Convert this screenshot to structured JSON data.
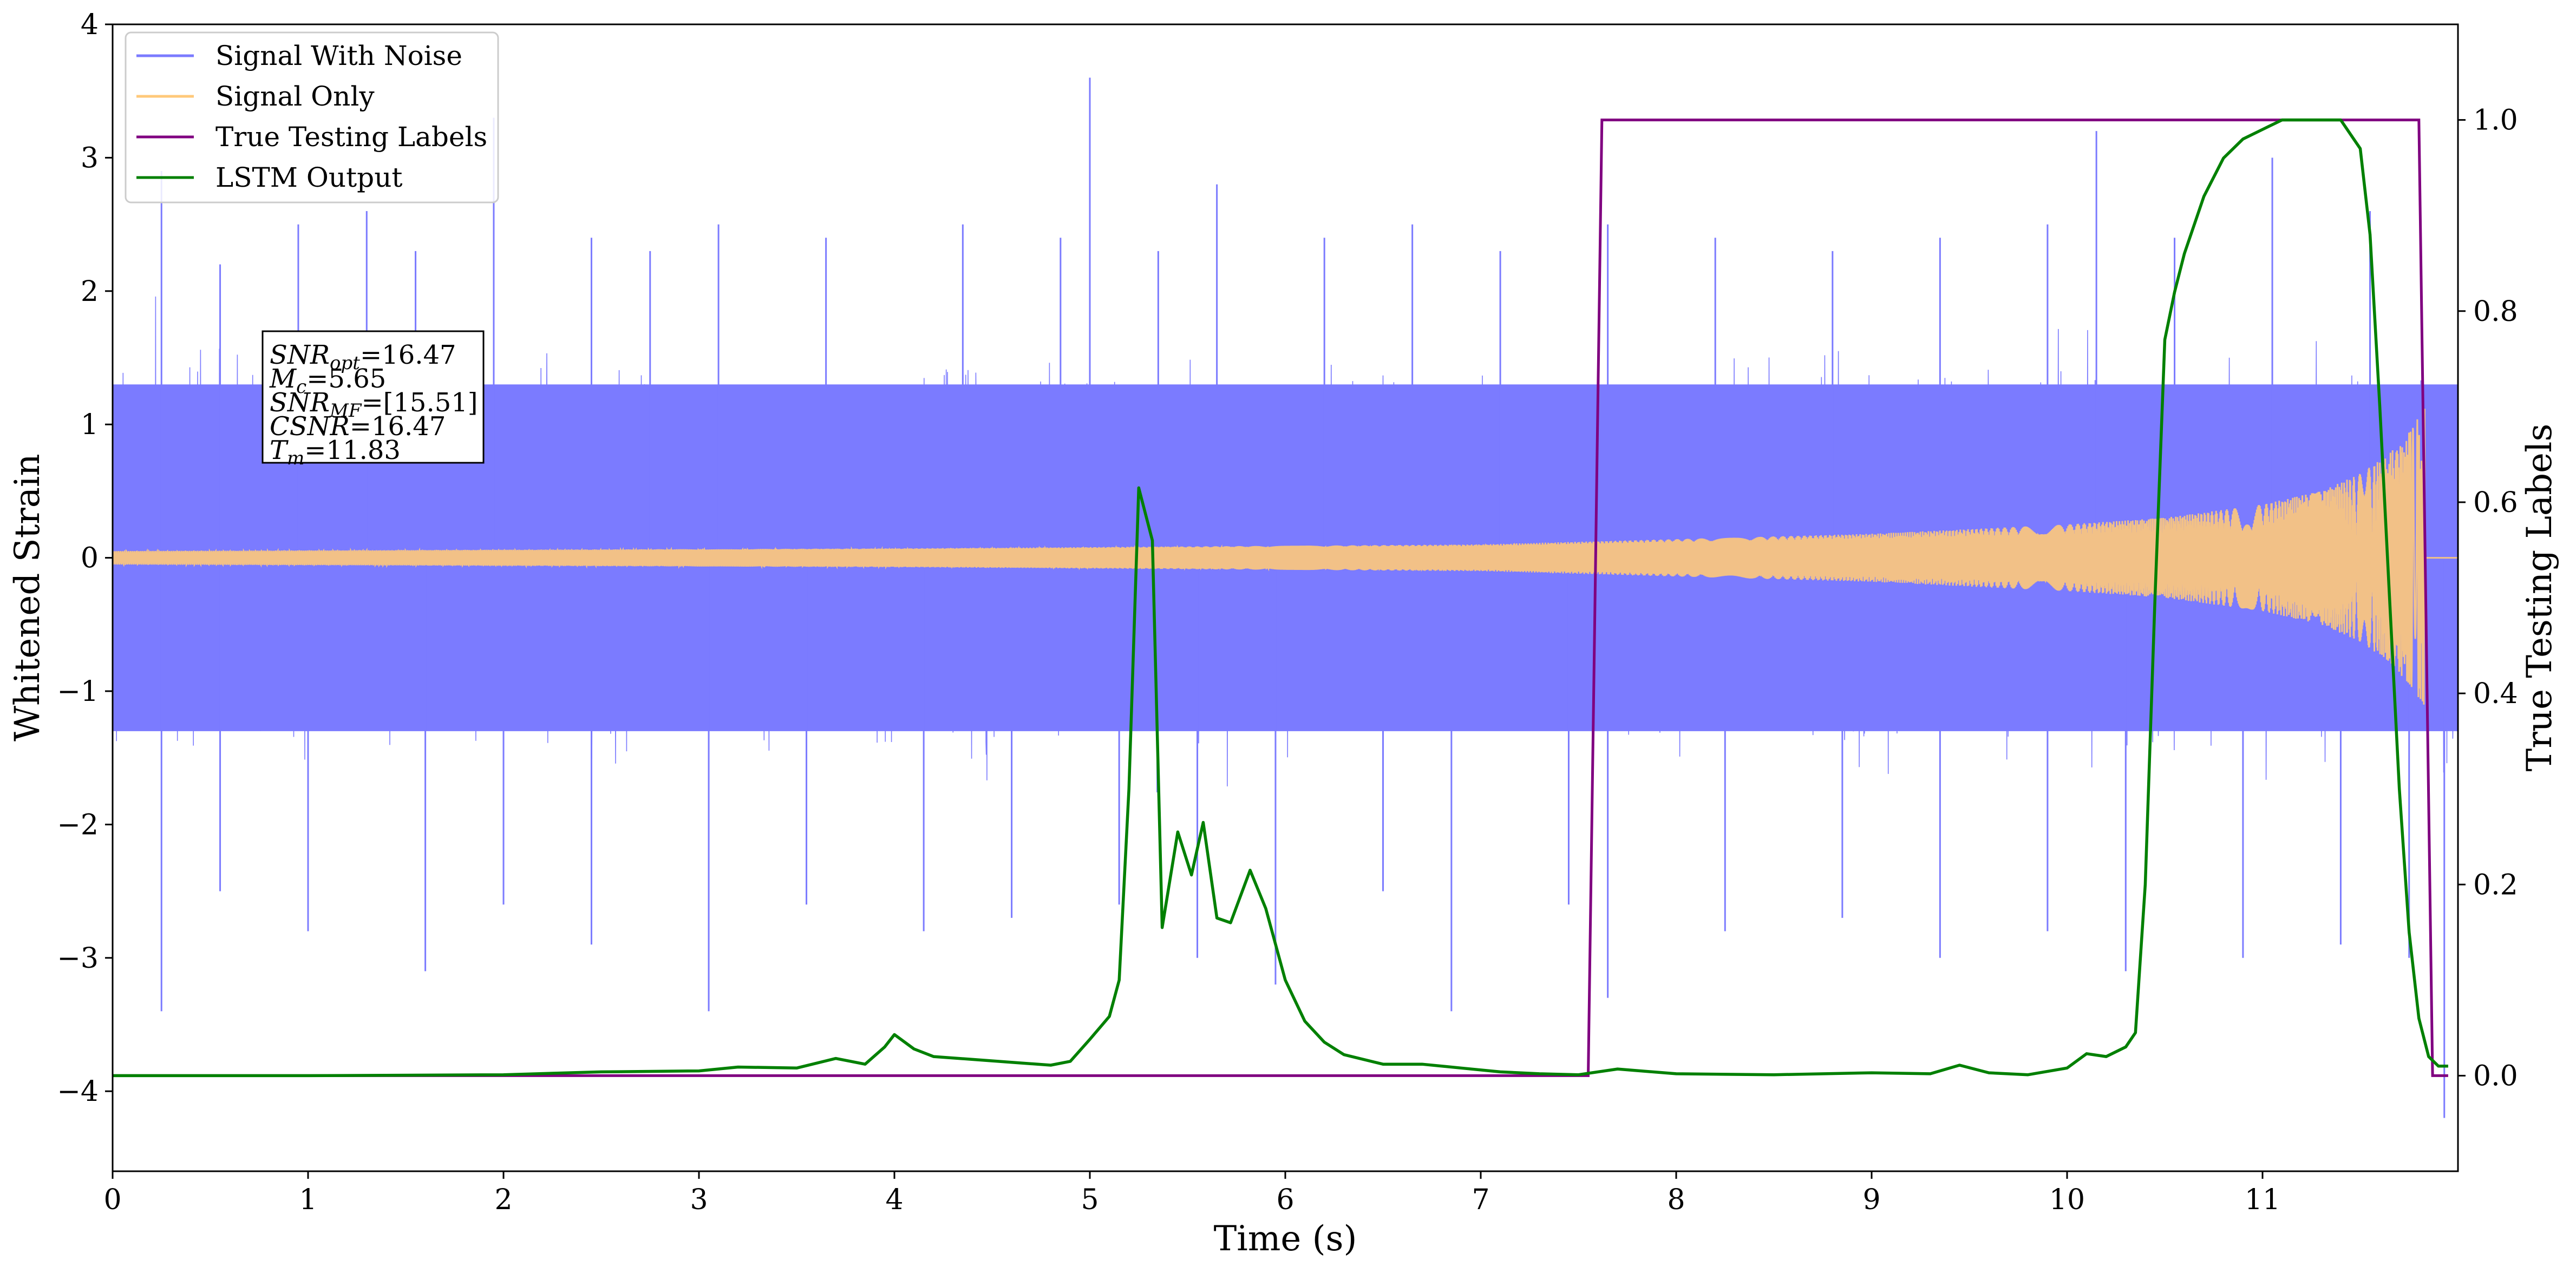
{
  "chart_data": {
    "type": "line",
    "title": "",
    "xlabel": "Time (s)",
    "ylabel_left": "Whitened Strain",
    "ylabel_right": "True Testing Labels",
    "xlim": [
      0,
      12
    ],
    "ylim_left": [
      -4.6,
      4.0
    ],
    "ylim_right": [
      -0.1,
      1.1
    ],
    "x_ticks": [
      {
        "value": 0,
        "label": "0"
      },
      {
        "value": 1,
        "label": "1"
      },
      {
        "value": 2,
        "label": "2"
      },
      {
        "value": 3,
        "label": "3"
      },
      {
        "value": 4,
        "label": "4"
      },
      {
        "value": 5,
        "label": "5"
      },
      {
        "value": 6,
        "label": "6"
      },
      {
        "value": 7,
        "label": "7"
      },
      {
        "value": 8,
        "label": "8"
      },
      {
        "value": 9,
        "label": "9"
      },
      {
        "value": 10,
        "label": "10"
      },
      {
        "value": 11,
        "label": "11"
      }
    ],
    "y_left_ticks": [
      {
        "value": 4,
        "label": "4"
      },
      {
        "value": 3,
        "label": "3"
      },
      {
        "value": 2,
        "label": "2"
      },
      {
        "value": 1,
        "label": "1"
      },
      {
        "value": 0,
        "label": "0"
      },
      {
        "value": -1,
        "label": "−1"
      },
      {
        "value": -2,
        "label": "−2"
      },
      {
        "value": -3,
        "label": "−3"
      },
      {
        "value": -4,
        "label": "−4"
      }
    ],
    "y_right_ticks": [
      {
        "value": 1.0,
        "label": "1.0"
      },
      {
        "value": 0.8,
        "label": "0.8"
      },
      {
        "value": 0.6,
        "label": "0.6"
      },
      {
        "value": 0.4,
        "label": "0.4"
      },
      {
        "value": 0.2,
        "label": "0.2"
      },
      {
        "value": 0.0,
        "label": "0.0"
      }
    ],
    "legend": {
      "placement": "top-left",
      "entries": [
        {
          "label": "Signal With Noise",
          "color": "#7b7bff"
        },
        {
          "label": "Signal Only",
          "color": "#ffc97a"
        },
        {
          "label": "True Testing Labels",
          "color": "#800080"
        },
        {
          "label": "LSTM Output",
          "color": "#008000"
        }
      ]
    },
    "annotation": {
      "placement": "upper-left",
      "lines": [
        {
          "main": "SNR",
          "sub": "opt",
          "rest": "=16.47"
        },
        {
          "main": "M",
          "sub": "c",
          "rest": "=5.65"
        },
        {
          "main": "SNR",
          "sub": "MF",
          "rest": "=[15.51]"
        },
        {
          "main": "CSNR",
          "sub": "",
          "rest": "=16.47"
        },
        {
          "main": "T",
          "sub": "m",
          "rest": "=11.83"
        }
      ]
    },
    "series": [
      {
        "name": "Signal With Noise",
        "axis": "left",
        "color": "#7b7bff",
        "style": "dense noise band",
        "band_lower_typical": -1.3,
        "band_upper_typical": 1.3,
        "spikes_up": [
          [
            0.25,
            2.9
          ],
          [
            0.55,
            2.2
          ],
          [
            0.95,
            2.5
          ],
          [
            1.3,
            2.6
          ],
          [
            1.55,
            2.3
          ],
          [
            1.95,
            3.3
          ],
          [
            2.45,
            2.4
          ],
          [
            2.75,
            2.3
          ],
          [
            3.1,
            2.5
          ],
          [
            3.65,
            2.4
          ],
          [
            4.35,
            2.5
          ],
          [
            4.85,
            2.4
          ],
          [
            5.0,
            3.6
          ],
          [
            5.35,
            2.3
          ],
          [
            5.65,
            2.8
          ],
          [
            6.2,
            2.4
          ],
          [
            6.65,
            2.5
          ],
          [
            7.1,
            2.3
          ],
          [
            7.65,
            2.5
          ],
          [
            8.2,
            2.4
          ],
          [
            8.8,
            2.3
          ],
          [
            9.35,
            2.4
          ],
          [
            9.9,
            2.5
          ],
          [
            10.15,
            3.2
          ],
          [
            10.55,
            2.4
          ],
          [
            11.05,
            3.0
          ],
          [
            11.55,
            2.6
          ]
        ],
        "spikes_down": [
          [
            0.25,
            -3.4
          ],
          [
            0.55,
            -2.5
          ],
          [
            1.0,
            -2.8
          ],
          [
            1.6,
            -3.1
          ],
          [
            2.0,
            -2.6
          ],
          [
            2.45,
            -2.9
          ],
          [
            3.05,
            -3.4
          ],
          [
            3.55,
            -2.6
          ],
          [
            4.15,
            -2.8
          ],
          [
            4.6,
            -2.7
          ],
          [
            5.15,
            -2.6
          ],
          [
            5.55,
            -3.0
          ],
          [
            5.95,
            -3.2
          ],
          [
            6.5,
            -2.5
          ],
          [
            6.85,
            -3.4
          ],
          [
            7.45,
            -2.6
          ],
          [
            7.65,
            -3.3
          ],
          [
            8.25,
            -2.8
          ],
          [
            8.85,
            -2.7
          ],
          [
            9.35,
            -3.0
          ],
          [
            9.9,
            -2.8
          ],
          [
            10.3,
            -3.1
          ],
          [
            10.9,
            -3.0
          ],
          [
            11.4,
            -2.9
          ],
          [
            11.75,
            -3.0
          ],
          [
            11.93,
            -4.2
          ]
        ]
      },
      {
        "name": "Signal Only",
        "axis": "left",
        "color": "#ffc97a",
        "style": "chirp",
        "envelope": [
          [
            0,
            0.05
          ],
          [
            2,
            0.06
          ],
          [
            4,
            0.07
          ],
          [
            6,
            0.09
          ],
          [
            7,
            0.1
          ],
          [
            8,
            0.14
          ],
          [
            9,
            0.18
          ],
          [
            10,
            0.25
          ],
          [
            10.5,
            0.3
          ],
          [
            11,
            0.4
          ],
          [
            11.3,
            0.5
          ],
          [
            11.5,
            0.63
          ],
          [
            11.65,
            0.78
          ],
          [
            11.75,
            0.95
          ],
          [
            11.83,
            1.12
          ],
          [
            11.86,
            0.0
          ],
          [
            12.0,
            0.0
          ]
        ]
      },
      {
        "name": "True Testing Labels",
        "axis": "right",
        "color": "#800080",
        "x": [
          0,
          7.55,
          7.62,
          11.8,
          11.87,
          11.95
        ],
        "y": [
          0,
          0,
          1,
          1,
          0,
          0
        ]
      },
      {
        "name": "LSTM Output",
        "axis": "right",
        "color": "#008000",
        "x": [
          0,
          1.0,
          2.0,
          2.5,
          3.0,
          3.2,
          3.5,
          3.7,
          3.85,
          3.95,
          4.0,
          4.1,
          4.2,
          4.4,
          4.6,
          4.8,
          4.9,
          5.0,
          5.1,
          5.15,
          5.2,
          5.25,
          5.32,
          5.37,
          5.45,
          5.52,
          5.58,
          5.65,
          5.72,
          5.82,
          5.9,
          6.0,
          6.1,
          6.2,
          6.3,
          6.5,
          6.7,
          6.9,
          7.1,
          7.3,
          7.5,
          7.7,
          8.0,
          8.5,
          9.0,
          9.3,
          9.45,
          9.6,
          9.8,
          10.0,
          10.1,
          10.2,
          10.3,
          10.35,
          10.4,
          10.45,
          10.5,
          10.55,
          10.6,
          10.7,
          10.8,
          10.9,
          11.0,
          11.1,
          11.2,
          11.3,
          11.4,
          11.5,
          11.55,
          11.6,
          11.65,
          11.7,
          11.75,
          11.8,
          11.85,
          11.9,
          11.95
        ],
        "y": [
          0.0,
          0.0,
          0.001,
          0.004,
          0.005,
          0.009,
          0.008,
          0.018,
          0.012,
          0.03,
          0.043,
          0.028,
          0.02,
          0.017,
          0.014,
          0.011,
          0.015,
          0.038,
          0.062,
          0.1,
          0.3,
          0.615,
          0.56,
          0.155,
          0.255,
          0.21,
          0.265,
          0.165,
          0.16,
          0.215,
          0.175,
          0.1,
          0.057,
          0.035,
          0.022,
          0.012,
          0.012,
          0.008,
          0.004,
          0.002,
          0.001,
          0.007,
          0.002,
          0.001,
          0.003,
          0.002,
          0.011,
          0.003,
          0.001,
          0.008,
          0.023,
          0.02,
          0.03,
          0.045,
          0.2,
          0.5,
          0.77,
          0.82,
          0.86,
          0.92,
          0.96,
          0.98,
          0.99,
          1.0,
          1.0,
          1.0,
          1.0,
          0.97,
          0.88,
          0.7,
          0.5,
          0.3,
          0.15,
          0.06,
          0.02,
          0.01,
          0.01
        ]
      }
    ]
  }
}
